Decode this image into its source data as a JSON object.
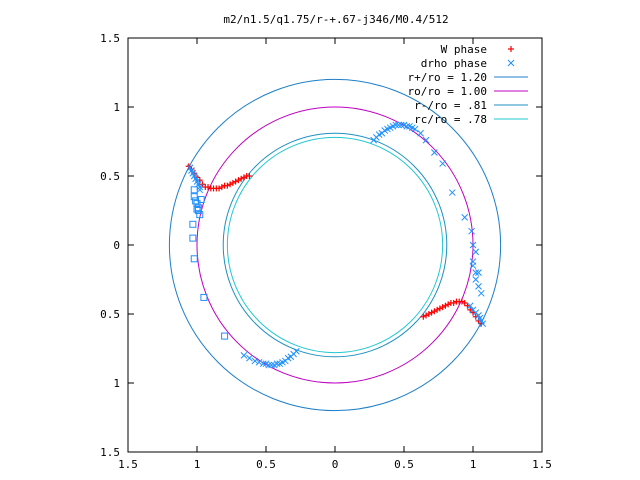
{
  "chart_data": {
    "type": "scatter",
    "title": "m2/n1.5/q1.75/r-+.67-j346/M0.4/512",
    "xlabel": "",
    "ylabel": "",
    "xlim": [
      -1.5,
      1.5
    ],
    "ylim": [
      -1.5,
      1.5
    ],
    "x_ticks": [
      -1.5,
      -1,
      -0.5,
      0,
      0.5,
      1,
      1.5
    ],
    "x_tick_labels": [
      "1.5",
      "1",
      "0.5",
      "0",
      "0.5",
      "1",
      "1.5"
    ],
    "y_ticks": [
      1.5,
      1,
      0.5,
      0,
      -0.5,
      -1,
      -1.5
    ],
    "y_tick_labels": [
      "1.5",
      "1",
      "0.5",
      "0",
      "0.5",
      "1",
      "1.5"
    ],
    "grid": false,
    "legend_position": "top-right",
    "legend": [
      {
        "label": "W phase",
        "kind": "plus",
        "color": "#ff0000"
      },
      {
        "label": "drho phase",
        "kind": "cross",
        "color": "#1e90ff"
      },
      {
        "label": "r+/ro = 1.20",
        "kind": "line",
        "color": "#1e7fc8"
      },
      {
        "label": "ro/ro = 1.00",
        "kind": "line",
        "color": "#c000c0"
      },
      {
        "label": "r-/ro = .81",
        "kind": "line",
        "color": "#1e90c0"
      },
      {
        "label": "rc/ro = .78",
        "kind": "line",
        "color": "#20c8d0"
      }
    ],
    "circles": [
      {
        "name": "r+/ro = 1.20",
        "radius": 1.2,
        "color": "#1e7fc8"
      },
      {
        "name": "ro/ro = 1.00",
        "radius": 1.0,
        "color": "#c000c0"
      },
      {
        "name": "r-/ro = .81",
        "radius": 0.81,
        "color": "#1e90c0"
      },
      {
        "name": "rc/ro = .78",
        "radius": 0.78,
        "color": "#20c8d0"
      }
    ],
    "series": [
      {
        "name": "W phase",
        "marker": "plus",
        "color": "#ff0000",
        "x": [
          -1.06,
          -1.04,
          -1.02,
          -1.0,
          -0.98,
          -0.96,
          -0.94,
          -0.92,
          -0.9,
          -0.88,
          -0.86,
          -0.84,
          -0.82,
          -0.8,
          -0.78,
          -0.76,
          -0.74,
          -0.72,
          -0.7,
          -0.68,
          -0.66,
          -0.64,
          -0.62,
          1.06,
          1.04,
          1.02,
          1.0,
          0.98,
          0.96,
          0.94,
          0.92,
          0.9,
          0.88,
          0.86,
          0.84,
          0.82,
          0.8,
          0.78,
          0.76,
          0.74,
          0.72,
          0.7,
          0.68,
          0.66,
          0.64
        ],
        "y": [
          0.57,
          0.55,
          0.52,
          0.49,
          0.47,
          0.44,
          0.42,
          0.42,
          0.41,
          0.41,
          0.41,
          0.41,
          0.42,
          0.43,
          0.43,
          0.44,
          0.45,
          0.46,
          0.47,
          0.48,
          0.49,
          0.5,
          0.5,
          -0.57,
          -0.55,
          -0.52,
          -0.49,
          -0.47,
          -0.44,
          -0.42,
          -0.41,
          -0.41,
          -0.41,
          -0.42,
          -0.42,
          -0.43,
          -0.44,
          -0.45,
          -0.46,
          -0.47,
          -0.48,
          -0.49,
          -0.5,
          -0.51,
          -0.52
        ]
      },
      {
        "name": "drho phase",
        "marker": "cross",
        "color": "#1e90ff",
        "x": [
          -1.05,
          -1.04,
          -1.03,
          -1.02,
          -1.01,
          -1.0,
          -0.99,
          -0.98,
          -0.98,
          -0.28,
          -0.3,
          -0.32,
          -0.34,
          -0.36,
          -0.38,
          -0.4,
          -0.42,
          -0.44,
          -0.46,
          -0.48,
          -0.5,
          -0.52,
          -0.55,
          -0.58,
          -0.62,
          -0.66,
          0.28,
          0.3,
          0.32,
          0.34,
          0.36,
          0.38,
          0.4,
          0.42,
          0.44,
          0.46,
          0.48,
          0.5,
          0.52,
          0.54,
          0.56,
          0.58,
          0.62,
          0.66,
          0.72,
          0.78,
          0.85,
          0.94,
          0.98,
          1.0,
          1.02,
          1.04,
          1.05,
          1.06,
          1.07,
          1.06,
          1.04,
          1.02,
          1.0,
          0.99,
          1.0,
          1.02,
          1.04,
          1.02,
          1.0
        ],
        "y": [
          0.56,
          0.54,
          0.52,
          0.5,
          0.48,
          0.46,
          0.44,
          0.42,
          0.4,
          -0.77,
          -0.79,
          -0.81,
          -0.82,
          -0.84,
          -0.85,
          -0.86,
          -0.86,
          -0.87,
          -0.87,
          -0.87,
          -0.86,
          -0.86,
          -0.85,
          -0.84,
          -0.82,
          -0.8,
          0.76,
          0.78,
          0.8,
          0.81,
          0.83,
          0.84,
          0.85,
          0.86,
          0.87,
          0.87,
          0.87,
          0.87,
          0.86,
          0.86,
          0.85,
          0.84,
          0.81,
          0.76,
          0.67,
          0.59,
          0.38,
          0.2,
          -0.44,
          -0.47,
          -0.49,
          -0.51,
          -0.53,
          -0.55,
          -0.57,
          -0.35,
          -0.3,
          -0.2,
          -0.12,
          0.1,
          0.0,
          -0.05,
          -0.2,
          -0.25,
          -0.15
        ]
      },
      {
        "name": "drho phase squares",
        "marker": "square",
        "color": "#1e90ff",
        "x": [
          -1.02,
          -1.02,
          -1.01,
          -1.0,
          -1.0,
          -0.99,
          -0.99,
          -0.98,
          -0.97,
          -1.03,
          -1.03,
          -1.02,
          -0.95,
          -0.8
        ],
        "y": [
          0.4,
          0.35,
          0.32,
          0.3,
          0.26,
          0.27,
          0.25,
          0.22,
          0.33,
          0.15,
          0.05,
          -0.1,
          -0.38,
          -0.66
        ]
      }
    ]
  }
}
